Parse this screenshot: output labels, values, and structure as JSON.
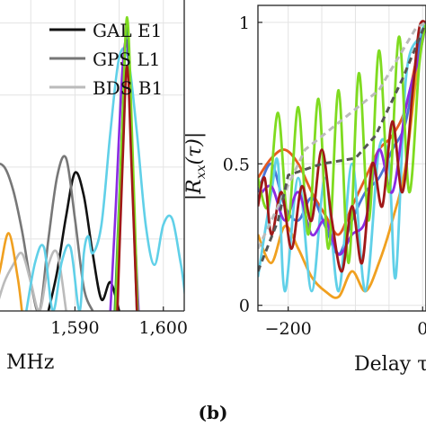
{
  "panel_label": "(b)",
  "chart_data": [
    {
      "type": "line",
      "xlabel": "MHz",
      "ylabel": "",
      "xlim": [
        1580.5,
        1604.5
      ],
      "ylim": [
        0,
        1.08
      ],
      "xticks": [
        1590,
        1600
      ],
      "xtick_labels": [
        "1,590",
        "1,600"
      ],
      "grid": true,
      "legend_position": "top",
      "legend": [
        "GAL E1",
        "GPS L1",
        "BDS B1"
      ],
      "series": [
        {
          "name": "GAL E1",
          "color": "#111111",
          "x": [
            1587,
            1588,
            1589,
            1590,
            1591,
            1592,
            1593,
            1594,
            1595
          ],
          "y": [
            0,
            0.14,
            0.33,
            0.48,
            0.4,
            0.2,
            0.04,
            0.1,
            0
          ]
        },
        {
          "name": "GPS L1",
          "color": "#777777",
          "x": [
            1580.5,
            1581,
            1582,
            1583,
            1584,
            1585,
            1586,
            1587,
            1588,
            1589,
            1590,
            1591,
            1592
          ],
          "y": [
            0.4,
            0.5,
            0.5,
            0.42,
            0.28,
            0.1,
            0,
            0.25,
            0.47,
            0.53,
            0.32,
            0.08,
            0
          ]
        },
        {
          "name": "BDS B1",
          "color": "#bbbbbb",
          "x": [
            1581,
            1582,
            1583,
            1584,
            1585,
            1586,
            1587,
            1588,
            1589
          ],
          "y": [
            0,
            0.1,
            0.16,
            0.2,
            0.1,
            0,
            0.16,
            0.2,
            0
          ]
        },
        {
          "name": "",
          "color": "#f0a020",
          "x": [
            1580.5,
            1581.5,
            1582.5,
            1583.5,
            1584
          ],
          "y": [
            0,
            0.14,
            0.27,
            0.12,
            0
          ]
        },
        {
          "name": "",
          "color": "#60d0e8",
          "x": [
            1584.5,
            1585.5,
            1586.5,
            1587.5,
            1588.5,
            1589.5,
            1590.5,
            1591,
            1591.5,
            1592,
            1593,
            1594,
            1595,
            1596,
            1597,
            1598,
            1599,
            1600,
            1601,
            1602,
            1603,
            1604.5
          ],
          "y": [
            0,
            0.17,
            0.22,
            0,
            0.17,
            0.22,
            0,
            0.2,
            0.26,
            0.2,
            0.3,
            0.62,
            0.88,
            0.88,
            0.62,
            0.3,
            0.16,
            0.3,
            0.32,
            0.16,
            0,
            0.3
          ]
        },
        {
          "name": "",
          "color": "#8a2be2",
          "x": [
            1594,
            1594.6,
            1595.4,
            1596,
            1596.6,
            1597.2
          ],
          "y": [
            0,
            0.35,
            0.85,
            0.9,
            0.4,
            0
          ]
        },
        {
          "name": "",
          "color": "#2e8b57",
          "x": [
            1594.5,
            1595.3,
            1595.9,
            1596.4,
            1597
          ],
          "y": [
            0,
            0.6,
            1.0,
            0.55,
            0
          ]
        },
        {
          "name": "",
          "color": "#7fdb20",
          "x": [
            1594.6,
            1595.3,
            1595.9,
            1596.5,
            1597.1
          ],
          "y": [
            0,
            0.6,
            1.02,
            0.58,
            0
          ]
        },
        {
          "name": "",
          "color": "#a01818",
          "x": [
            1594.8,
            1595.4,
            1595.9,
            1596.4,
            1597
          ],
          "y": [
            0,
            0.52,
            0.85,
            0.5,
            0
          ]
        }
      ]
    },
    {
      "type": "line",
      "xlabel": "Delay τ",
      "ylabel": "|R_xx(τ)|",
      "xlim": [
        -245,
        5
      ],
      "ylim": [
        -0.02,
        1.06
      ],
      "xticks": [
        -200,
        0
      ],
      "xtick_labels": [
        "−200",
        "0"
      ],
      "yticks": [
        0,
        0.5,
        1
      ],
      "ytick_labels": [
        "0",
        "0.5",
        "1"
      ],
      "grid": true,
      "series": [
        {
          "name": "",
          "color": "#f0a020",
          "x": [
            -245,
            -225,
            -205,
            -185,
            -165,
            -145,
            -125,
            -105,
            -85,
            -65,
            -45,
            -25,
            -5,
            5
          ],
          "y": [
            0.25,
            0.15,
            0.28,
            0.2,
            0.1,
            0.05,
            0.03,
            0.12,
            0.05,
            0.15,
            0.3,
            0.5,
            0.9,
            1.0
          ]
        },
        {
          "name": "",
          "color": "#e65a20",
          "x": [
            -245,
            -225,
            -205,
            -185,
            -165,
            -145,
            -125,
            -105,
            -85,
            -65,
            -45,
            -25,
            -5,
            5
          ],
          "y": [
            0.45,
            0.52,
            0.55,
            0.5,
            0.4,
            0.32,
            0.25,
            0.35,
            0.45,
            0.55,
            0.6,
            0.7,
            0.92,
            1.0
          ]
        },
        {
          "name": "",
          "color": "#4a74d8",
          "x": [
            -245,
            -225,
            -205,
            -185,
            -165,
            -145,
            -125,
            -105,
            -85,
            -65,
            -45,
            -25,
            -5,
            5
          ],
          "y": [
            0.4,
            0.5,
            0.35,
            0.3,
            0.38,
            0.28,
            0.18,
            0.3,
            0.4,
            0.45,
            0.55,
            0.65,
            0.92,
            1.0
          ]
        },
        {
          "name": "",
          "color": "#60d0e8",
          "x": [
            -245,
            -225,
            -215,
            -205,
            -185,
            -165,
            -145,
            -125,
            -105,
            -85,
            -65,
            -50,
            -40,
            -25,
            -5,
            5
          ],
          "y": [
            0.1,
            0.4,
            0.5,
            0.05,
            0.45,
            0.05,
            0.45,
            0.05,
            0.5,
            0.05,
            0.55,
            0.5,
            0.1,
            0.8,
            0.95,
            1.0
          ]
        },
        {
          "name": "",
          "color": "#8a2be2",
          "x": [
            -245,
            -225,
            -205,
            -185,
            -165,
            -145,
            -125,
            -105,
            -85,
            -65,
            -45,
            -25,
            -5,
            5
          ],
          "y": [
            0.38,
            0.42,
            0.3,
            0.4,
            0.25,
            0.3,
            0.18,
            0.25,
            0.3,
            0.55,
            0.4,
            0.7,
            0.88,
            1.0
          ]
        },
        {
          "name": "",
          "color": "#7fdb20",
          "x": [
            -245,
            -230,
            -215,
            -200,
            -185,
            -170,
            -155,
            -140,
            -125,
            -110,
            -95,
            -80,
            -65,
            -50,
            -35,
            -20,
            -5,
            5
          ],
          "y": [
            0.45,
            0.35,
            0.68,
            0.3,
            0.7,
            0.25,
            0.73,
            0.2,
            0.76,
            0.15,
            0.82,
            0.3,
            0.9,
            0.4,
            0.95,
            0.4,
            0.85,
            1.0
          ]
        },
        {
          "name": "",
          "color": "#a01818",
          "x": [
            -245,
            -235,
            -225,
            -210,
            -195,
            -180,
            -165,
            -150,
            -135,
            -120,
            -105,
            -90,
            -75,
            -60,
            -45,
            -30,
            -15,
            -5,
            5
          ],
          "y": [
            0.35,
            0.45,
            0.25,
            0.4,
            0.2,
            0.42,
            0.3,
            0.55,
            0.3,
            0.12,
            0.35,
            0.15,
            0.5,
            0.35,
            0.65,
            0.4,
            0.75,
            0.98,
            1.0
          ]
        },
        {
          "name": "",
          "color": "#bbbbbb",
          "dashed": true,
          "x": [
            -245,
            -175,
            -65,
            -10,
            5
          ],
          "y": [
            0.2,
            0.55,
            0.76,
            0.98,
            1.0
          ]
        },
        {
          "name": "",
          "color": "#555555",
          "dashed": true,
          "x": [
            -245,
            -215,
            -200,
            -150,
            -100,
            -70,
            -30,
            5
          ],
          "y": [
            0.12,
            0.3,
            0.46,
            0.5,
            0.52,
            0.6,
            0.8,
            1.0
          ]
        }
      ]
    }
  ]
}
